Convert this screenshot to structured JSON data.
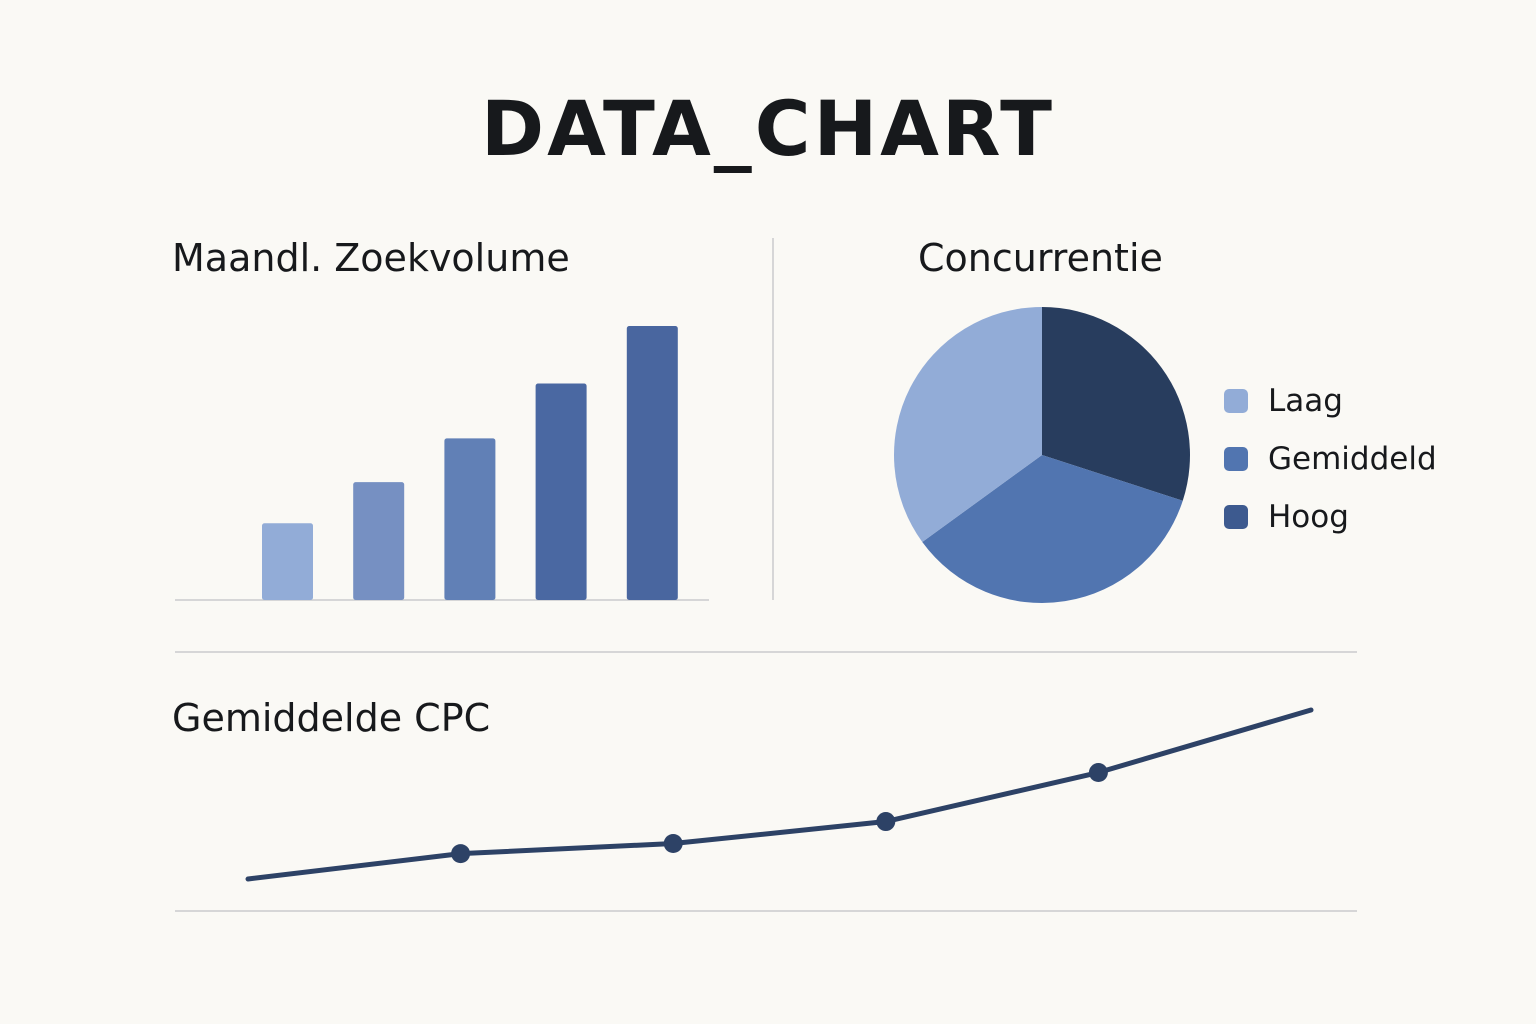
{
  "title": "DATA_CHART",
  "colors": {
    "rule": "#c9cbcd",
    "line": "#2d4266"
  },
  "chart_data": [
    {
      "type": "bar",
      "title": "Maandl. Zoekvolume",
      "categories": [
        "",
        "",
        "",
        "",
        ""
      ],
      "values": [
        28,
        43,
        59,
        79,
        100
      ],
      "ylim": [
        0,
        100
      ],
      "bar_colors": [
        "#92acd7",
        "#7690c2",
        "#6180b6",
        "#4a68a2",
        "#49669f"
      ],
      "grid": false
    },
    {
      "type": "pie",
      "title": "Concurrentie",
      "slices": [
        {
          "label": "Laag",
          "value": 35,
          "color": "#92acd7"
        },
        {
          "label": "Gemiddeld",
          "value": 35,
          "color": "#5175b0"
        },
        {
          "label": "Hoog",
          "value": 30,
          "color": "#283d5e"
        }
      ],
      "legend": [
        {
          "label": "Laag",
          "color": "#92acd7"
        },
        {
          "label": "Gemiddeld",
          "color": "#5175b0"
        },
        {
          "label": "Hoog",
          "color": "#3d5a8f"
        }
      ],
      "legend_position": "right"
    },
    {
      "type": "line",
      "title": "Gemiddelde CPC",
      "x": [
        0,
        1,
        2,
        3,
        4,
        5
      ],
      "y": [
        0,
        15,
        21,
        34,
        63,
        100
      ],
      "ylim": [
        0,
        100
      ],
      "markers": [
        false,
        true,
        true,
        true,
        true,
        false
      ],
      "grid": false
    }
  ]
}
